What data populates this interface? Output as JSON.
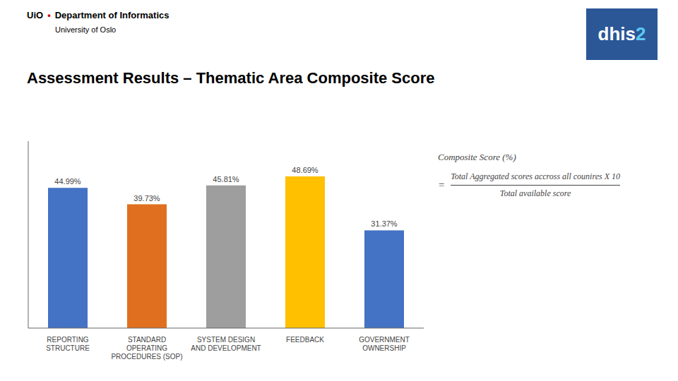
{
  "chart_data": {
    "type": "bar",
    "title": "Assessment Results – Thematic Area Composite Score",
    "categories": [
      "REPORTING\nSTRUCTURE",
      "STANDARD\nOPERATING\nPROCEDURES (SOP)",
      "SYSTEM DESIGN\nAND DEVELOPMENT",
      "FEEDBACK",
      "GOVERNMENT\nOWNERSHIP"
    ],
    "values": [
      44.99,
      39.73,
      45.81,
      48.69,
      31.37
    ],
    "value_labels": [
      "44.99%",
      "39.73%",
      "45.81%",
      "48.69%",
      "31.37%"
    ],
    "colors": [
      "#4472C4",
      "#E07020",
      "#9E9E9E",
      "#FFC000",
      "#4472C4"
    ],
    "ylim": [
      0,
      60
    ],
    "data_labels": true,
    "tick_labels": "x",
    "grid": false,
    "annotations": [
      "UiO",
      "•",
      "Department of Informatics",
      "University of Oslo",
      "dhis",
      "2",
      "Composite Score (%)",
      "=",
      "Total Aggregated scores accross all counires X 10",
      "Total available score"
    ]
  }
}
